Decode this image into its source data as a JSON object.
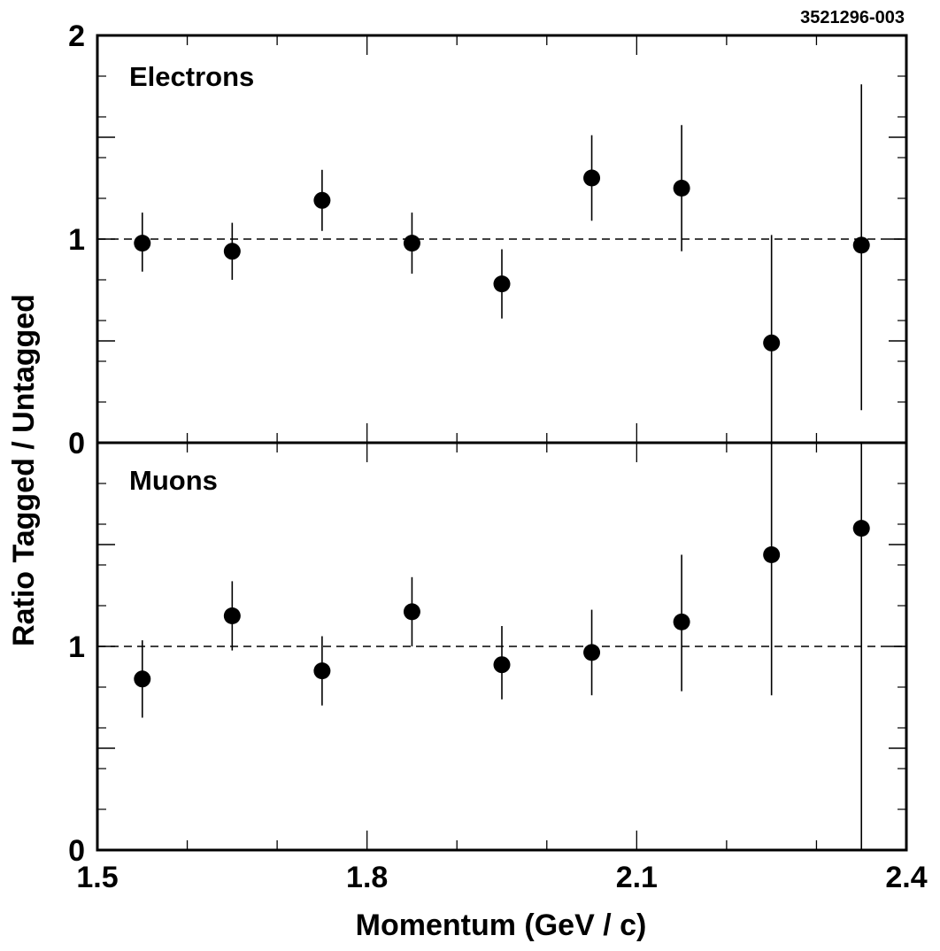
{
  "figure_id": "3521296-003",
  "chart_data": [
    {
      "type": "scatter",
      "panel_label": "Electrons",
      "xlim": [
        1.5,
        2.4
      ],
      "ylim": [
        0,
        2
      ],
      "y_ticks_labeled": [
        "0",
        "1",
        "2"
      ],
      "reference_line": 1.0,
      "reference_style": "dashed",
      "x": [
        1.55,
        1.65,
        1.75,
        1.85,
        1.95,
        2.05,
        2.15,
        2.25,
        2.35
      ],
      "y": [
        0.98,
        0.94,
        1.19,
        0.98,
        0.78,
        1.3,
        1.25,
        0.49,
        0.97
      ],
      "yerr_low": [
        0.14,
        0.14,
        0.15,
        0.15,
        0.17,
        0.21,
        0.31,
        0.49,
        0.81
      ],
      "yerr_high": [
        0.15,
        0.14,
        0.15,
        0.15,
        0.17,
        0.21,
        0.31,
        0.53,
        0.79
      ]
    },
    {
      "type": "scatter",
      "panel_label": "Muons",
      "xlim": [
        1.5,
        2.4
      ],
      "ylim": [
        0,
        2
      ],
      "y_ticks_labeled": [
        "0",
        "1"
      ],
      "reference_line": 1.0,
      "reference_style": "dashed",
      "x": [
        1.55,
        1.65,
        1.75,
        1.85,
        1.95,
        2.05,
        2.15,
        2.25,
        2.35
      ],
      "y": [
        0.84,
        1.15,
        0.88,
        1.17,
        0.91,
        0.97,
        1.12,
        1.45,
        1.58
      ],
      "yerr_low": [
        0.19,
        0.17,
        0.17,
        0.17,
        0.17,
        0.21,
        0.34,
        0.69,
        1.58
      ],
      "yerr_high": [
        0.19,
        0.17,
        0.17,
        0.17,
        0.19,
        0.21,
        0.33,
        0.69,
        0.42
      ]
    }
  ],
  "x_axis": {
    "title": "Momentum (GeV / c)",
    "tick_labels": [
      "1.5",
      "1.8",
      "2.1",
      "2.4"
    ],
    "tick_values": [
      1.5,
      1.8,
      2.1,
      2.4
    ]
  },
  "y_axis": {
    "title": "Ratio  Tagged / Untagged"
  }
}
